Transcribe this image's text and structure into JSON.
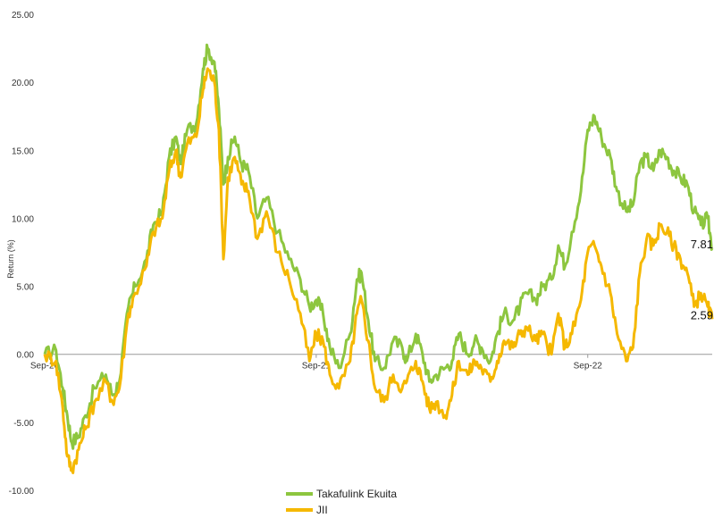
{
  "chart_data": {
    "type": "line",
    "title": "",
    "ylabel": "Return (%)",
    "xlabel": "",
    "ylim": [
      -10,
      25
    ],
    "y_ticks": [
      "-10.00",
      "-5.00",
      "0.00",
      "5.00",
      "10.00",
      "15.00",
      "20.00",
      "25.00"
    ],
    "x_ticks": [
      {
        "label": "Sep-20",
        "month": 0
      },
      {
        "label": "Sep-21",
        "month": 12
      },
      {
        "label": "Sep-22",
        "month": 24
      }
    ],
    "x_range_months": [
      0,
      29.5
    ],
    "grid": false,
    "legend_position": "bottom",
    "series": [
      {
        "name": "Takafulink Ekuita",
        "color": "#8dc63f",
        "end_label": "7.81",
        "points": [
          [
            0,
            0
          ],
          [
            0.5,
            0.3
          ],
          [
            0.8,
            -2.5
          ],
          [
            1.0,
            -4.5
          ],
          [
            1.2,
            -6.5
          ],
          [
            1.5,
            -6.0
          ],
          [
            1.8,
            -4.5
          ],
          [
            2.2,
            -2.5
          ],
          [
            2.7,
            -1.5
          ],
          [
            3.0,
            -3.0
          ],
          [
            3.3,
            -2.0
          ],
          [
            3.7,
            3.5
          ],
          [
            4.0,
            5.0
          ],
          [
            4.5,
            7.0
          ],
          [
            4.8,
            9.5
          ],
          [
            5.2,
            10.5
          ],
          [
            5.5,
            14.5
          ],
          [
            5.8,
            16.0
          ],
          [
            6.0,
            14.0
          ],
          [
            6.3,
            16.5
          ],
          [
            6.7,
            17.0
          ],
          [
            7.0,
            21.0
          ],
          [
            7.2,
            22.5
          ],
          [
            7.5,
            21.5
          ],
          [
            7.7,
            18.0
          ],
          [
            7.9,
            12.5
          ],
          [
            8.1,
            14.5
          ],
          [
            8.4,
            16.0
          ],
          [
            8.7,
            14.0
          ],
          [
            9.0,
            13.5
          ],
          [
            9.4,
            10.0
          ],
          [
            9.8,
            11.5
          ],
          [
            10.3,
            9.0
          ],
          [
            10.8,
            7.0
          ],
          [
            11.3,
            5.5
          ],
          [
            11.7,
            3.5
          ],
          [
            12.0,
            4.0
          ],
          [
            12.3,
            3.0
          ],
          [
            12.6,
            0.5
          ],
          [
            13.0,
            -1.0
          ],
          [
            13.5,
            1.5
          ],
          [
            13.8,
            5.5
          ],
          [
            14.0,
            6.0
          ],
          [
            14.3,
            2.5
          ],
          [
            14.6,
            -0.5
          ],
          [
            15.0,
            -1.0
          ],
          [
            15.4,
            1.0
          ],
          [
            15.8,
            0.5
          ],
          [
            16.0,
            -0.5
          ],
          [
            16.4,
            1.5
          ],
          [
            16.7,
            0.0
          ],
          [
            17.0,
            -2.0
          ],
          [
            17.3,
            -1.5
          ],
          [
            17.7,
            -1.0
          ],
          [
            18.0,
            -0.5
          ],
          [
            18.3,
            1.5
          ],
          [
            18.7,
            0.0
          ],
          [
            19.0,
            1.0
          ],
          [
            19.3,
            0.5
          ],
          [
            19.7,
            -0.5
          ],
          [
            20.0,
            1.5
          ],
          [
            20.3,
            3.0
          ],
          [
            20.7,
            2.5
          ],
          [
            21.0,
            3.5
          ],
          [
            21.3,
            4.5
          ],
          [
            21.7,
            4.0
          ],
          [
            22.0,
            5.0
          ],
          [
            22.4,
            5.5
          ],
          [
            22.7,
            8.0
          ],
          [
            23.0,
            6.5
          ],
          [
            23.3,
            9.0
          ],
          [
            23.7,
            12.0
          ],
          [
            24.0,
            16.5
          ],
          [
            24.3,
            17.5
          ],
          [
            24.6,
            16.0
          ],
          [
            25.0,
            14.5
          ],
          [
            25.3,
            12.0
          ],
          [
            25.7,
            10.5
          ],
          [
            26.0,
            11.0
          ],
          [
            26.3,
            14.0
          ],
          [
            26.6,
            14.5
          ],
          [
            26.9,
            13.5
          ],
          [
            27.2,
            15.0
          ],
          [
            27.5,
            14.5
          ],
          [
            27.8,
            13.5
          ],
          [
            28.1,
            13.0
          ],
          [
            28.4,
            12.5
          ],
          [
            28.7,
            10.5
          ],
          [
            29.0,
            9.5
          ],
          [
            29.3,
            10.0
          ],
          [
            29.5,
            7.81
          ]
        ]
      },
      {
        "name": "JII",
        "color": "#f5b800",
        "end_label": "2.59",
        "points": [
          [
            0,
            0
          ],
          [
            0.5,
            -0.5
          ],
          [
            0.8,
            -4.0
          ],
          [
            1.0,
            -7.5
          ],
          [
            1.2,
            -8.5
          ],
          [
            1.5,
            -7.0
          ],
          [
            1.8,
            -5.5
          ],
          [
            2.2,
            -3.5
          ],
          [
            2.7,
            -2.0
          ],
          [
            3.0,
            -3.5
          ],
          [
            3.3,
            -2.5
          ],
          [
            3.7,
            3.0
          ],
          [
            4.0,
            4.5
          ],
          [
            4.5,
            6.5
          ],
          [
            4.8,
            9.0
          ],
          [
            5.2,
            10.0
          ],
          [
            5.5,
            13.5
          ],
          [
            5.8,
            15.0
          ],
          [
            6.0,
            13.0
          ],
          [
            6.3,
            15.5
          ],
          [
            6.7,
            16.0
          ],
          [
            7.0,
            19.5
          ],
          [
            7.2,
            21.0
          ],
          [
            7.5,
            20.0
          ],
          [
            7.7,
            16.5
          ],
          [
            7.9,
            7.0
          ],
          [
            8.1,
            13.0
          ],
          [
            8.4,
            14.5
          ],
          [
            8.7,
            12.5
          ],
          [
            9.0,
            12.0
          ],
          [
            9.4,
            8.5
          ],
          [
            9.8,
            10.5
          ],
          [
            10.3,
            7.5
          ],
          [
            10.8,
            5.5
          ],
          [
            11.3,
            3.0
          ],
          [
            11.7,
            -0.5
          ],
          [
            12.0,
            1.5
          ],
          [
            12.3,
            1.0
          ],
          [
            12.6,
            -1.5
          ],
          [
            13.0,
            -2.5
          ],
          [
            13.5,
            -0.5
          ],
          [
            13.8,
            3.0
          ],
          [
            14.0,
            4.0
          ],
          [
            14.3,
            1.0
          ],
          [
            14.6,
            -2.5
          ],
          [
            15.0,
            -3.5
          ],
          [
            15.4,
            -1.5
          ],
          [
            15.8,
            -2.5
          ],
          [
            16.0,
            -2.0
          ],
          [
            16.4,
            -0.5
          ],
          [
            16.7,
            -2.0
          ],
          [
            17.0,
            -4.0
          ],
          [
            17.3,
            -3.5
          ],
          [
            17.7,
            -4.5
          ],
          [
            18.0,
            -3.0
          ],
          [
            18.3,
            -0.5
          ],
          [
            18.7,
            -1.5
          ],
          [
            19.0,
            -0.5
          ],
          [
            19.3,
            -1.0
          ],
          [
            19.7,
            -2.0
          ],
          [
            20.0,
            -0.5
          ],
          [
            20.3,
            1.0
          ],
          [
            20.7,
            0.5
          ],
          [
            21.0,
            1.5
          ],
          [
            21.3,
            2.0
          ],
          [
            21.7,
            1.0
          ],
          [
            22.0,
            1.5
          ],
          [
            22.4,
            0.0
          ],
          [
            22.7,
            3.0
          ],
          [
            23.0,
            0.5
          ],
          [
            23.3,
            1.5
          ],
          [
            23.7,
            4.0
          ],
          [
            24.0,
            7.5
          ],
          [
            24.3,
            8.0
          ],
          [
            24.6,
            6.5
          ],
          [
            25.0,
            4.5
          ],
          [
            25.3,
            1.5
          ],
          [
            25.7,
            -0.5
          ],
          [
            26.0,
            0.5
          ],
          [
            26.3,
            6.0
          ],
          [
            26.6,
            8.5
          ],
          [
            26.9,
            8.0
          ],
          [
            27.2,
            9.5
          ],
          [
            27.5,
            9.0
          ],
          [
            27.8,
            8.0
          ],
          [
            28.1,
            7.0
          ],
          [
            28.4,
            6.0
          ],
          [
            28.7,
            3.5
          ],
          [
            29.0,
            4.5
          ],
          [
            29.3,
            3.5
          ],
          [
            29.5,
            2.59
          ]
        ]
      }
    ]
  }
}
